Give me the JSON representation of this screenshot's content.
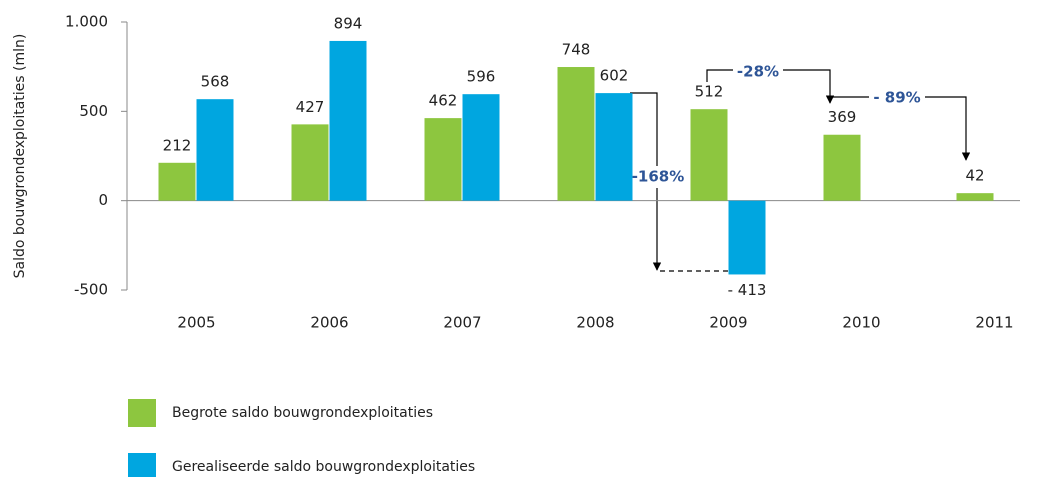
{
  "chart_data": {
    "type": "bar",
    "y_label": "Saldo bouwgrondexploitaties (mln)",
    "categories": [
      "2005",
      "2006",
      "2007",
      "2008",
      "2009",
      "2010",
      "2011"
    ],
    "series": [
      {
        "name": "Begrote saldo bouwgrondexploitaties",
        "color": "#8dc63f",
        "values": [
          212,
          427,
          462,
          748,
          512,
          369,
          42
        ]
      },
      {
        "name": "Gerealiseerde saldo bouwgrondexploitaties",
        "color": "#00a6e0",
        "values": [
          568,
          894,
          596,
          602,
          -413,
          null,
          null
        ],
        "value_labels": [
          "568",
          "894",
          "596",
          "602",
          "- 413",
          null,
          null
        ]
      }
    ],
    "ylim": [
      -500,
      1000
    ],
    "yticks": [
      -500,
      0,
      500,
      {
        "value": 1000,
        "label": "1.000"
      }
    ],
    "annotations": [
      "-168%",
      "-28%",
      "- 89%"
    ]
  }
}
